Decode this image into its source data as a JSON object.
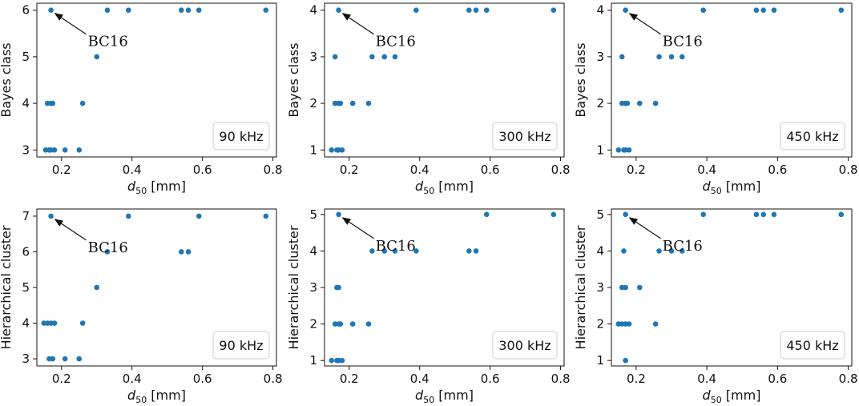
{
  "chart_data": [
    {
      "type": "scatter",
      "xlabel_main": "d",
      "xlabel_sub": "50",
      "xlabel_unit": " [mm]",
      "ylabel": "Bayes class",
      "legend": "90 kHz",
      "annotation": "BC16",
      "annotation_point": [
        0.17,
        6
      ],
      "xlim": [
        0.13,
        0.81
      ],
      "ylim": [
        2.85,
        6.15
      ],
      "xticks": [
        "0.2",
        "0.4",
        "0.6",
        "0.8"
      ],
      "xtick_values": [
        0.2,
        0.4,
        0.6,
        0.8
      ],
      "yticks": [
        "3",
        "4",
        "5",
        "6"
      ],
      "ytick_values": [
        3,
        4,
        5,
        6
      ],
      "x": [
        0.17,
        0.16,
        0.17,
        0.175,
        0.18,
        0.21,
        0.25,
        0.26,
        0.3,
        0.33,
        0.39,
        0.54,
        0.56,
        0.59,
        0.78,
        0.155,
        0.165,
        0.17
      ],
      "y": [
        6,
        4,
        4,
        4,
        3,
        3,
        3,
        4,
        5,
        6,
        6,
        6,
        6,
        6,
        6,
        3,
        3,
        3
      ],
      "color": "#1f77b4"
    },
    {
      "type": "scatter",
      "xlabel_main": "d",
      "xlabel_sub": "50",
      "xlabel_unit": " [mm]",
      "ylabel": "Bayes class",
      "legend": "300 kHz",
      "annotation": "BC16",
      "annotation_point": [
        0.17,
        4
      ],
      "xlim": [
        0.13,
        0.81
      ],
      "ylim": [
        0.85,
        4.15
      ],
      "xticks": [
        "0.2",
        "0.4",
        "0.6",
        "0.8"
      ],
      "xtick_values": [
        0.2,
        0.4,
        0.6,
        0.8
      ],
      "yticks": [
        "1",
        "2",
        "3",
        "4"
      ],
      "ytick_values": [
        1,
        2,
        3,
        4
      ],
      "x": [
        0.17,
        0.16,
        0.16,
        0.17,
        0.175,
        0.21,
        0.255,
        0.265,
        0.3,
        0.33,
        0.39,
        0.54,
        0.56,
        0.59,
        0.78,
        0.15,
        0.165,
        0.17,
        0.18
      ],
      "y": [
        4,
        3,
        2,
        2,
        2,
        2,
        2,
        3,
        3,
        3,
        4,
        4,
        4,
        4,
        4,
        1,
        1,
        1,
        1
      ],
      "color": "#1f77b4"
    },
    {
      "type": "scatter",
      "xlabel_main": "d",
      "xlabel_sub": "50",
      "xlabel_unit": " [mm]",
      "ylabel": "Bayes class",
      "legend": "450 kHz",
      "annotation": "BC16",
      "annotation_point": [
        0.17,
        4
      ],
      "xlim": [
        0.13,
        0.81
      ],
      "ylim": [
        0.85,
        4.15
      ],
      "xticks": [
        "0.2",
        "0.4",
        "0.6",
        "0.8"
      ],
      "xtick_values": [
        0.2,
        0.4,
        0.6,
        0.8
      ],
      "yticks": [
        "1",
        "2",
        "3",
        "4"
      ],
      "ytick_values": [
        1,
        2,
        3,
        4
      ],
      "x": [
        0.17,
        0.16,
        0.16,
        0.17,
        0.175,
        0.21,
        0.255,
        0.265,
        0.3,
        0.33,
        0.39,
        0.54,
        0.56,
        0.59,
        0.78,
        0.15,
        0.165,
        0.17,
        0.18
      ],
      "y": [
        4,
        3,
        2,
        2,
        2,
        2,
        2,
        3,
        3,
        3,
        4,
        4,
        4,
        4,
        4,
        1,
        1,
        1,
        1
      ],
      "color": "#1f77b4"
    },
    {
      "type": "scatter",
      "xlabel_main": "d",
      "xlabel_sub": "50",
      "xlabel_unit": " [mm]",
      "ylabel": "Hierarchical cluster",
      "legend": "90 kHz",
      "annotation": "BC16",
      "annotation_point": [
        0.17,
        7
      ],
      "xlim": [
        0.13,
        0.81
      ],
      "ylim": [
        2.8,
        7.2
      ],
      "xticks": [
        "0.2",
        "0.4",
        "0.6",
        "0.8"
      ],
      "xtick_values": [
        0.2,
        0.4,
        0.6,
        0.8
      ],
      "yticks": [
        "3",
        "4",
        "5",
        "6",
        "7"
      ],
      "ytick_values": [
        3,
        4,
        5,
        6,
        7
      ],
      "x": [
        0.17,
        0.15,
        0.16,
        0.17,
        0.18,
        0.165,
        0.175,
        0.21,
        0.25,
        0.26,
        0.3,
        0.33,
        0.39,
        0.54,
        0.56,
        0.59,
        0.78
      ],
      "y": [
        7,
        4,
        4,
        4,
        4,
        3,
        3,
        3,
        3,
        4,
        5,
        6,
        7,
        6,
        6,
        7,
        7
      ],
      "color": "#1f77b4"
    },
    {
      "type": "scatter",
      "xlabel_main": "d",
      "xlabel_sub": "50",
      "xlabel_unit": " [mm]",
      "ylabel": "Hierarchical cluster",
      "legend": "300 kHz",
      "annotation": "BC16",
      "annotation_point": [
        0.17,
        5
      ],
      "xlim": [
        0.13,
        0.81
      ],
      "ylim": [
        0.85,
        5.15
      ],
      "xticks": [
        "0.2",
        "0.4",
        "0.6",
        "0.8"
      ],
      "xtick_values": [
        0.2,
        0.4,
        0.6,
        0.8
      ],
      "yticks": [
        "1",
        "2",
        "3",
        "4",
        "5"
      ],
      "ytick_values": [
        1,
        2,
        3,
        4,
        5
      ],
      "x": [
        0.17,
        0.165,
        0.17,
        0.16,
        0.17,
        0.175,
        0.21,
        0.255,
        0.265,
        0.3,
        0.33,
        0.39,
        0.54,
        0.56,
        0.59,
        0.78,
        0.15,
        0.165,
        0.17,
        0.18
      ],
      "y": [
        5,
        3,
        3,
        2,
        2,
        2,
        2,
        2,
        4,
        4,
        4,
        4,
        4,
        4,
        5,
        5,
        1,
        1,
        1,
        1
      ],
      "color": "#1f77b4"
    },
    {
      "type": "scatter",
      "xlabel_main": "d",
      "xlabel_sub": "50",
      "xlabel_unit": " [mm]",
      "ylabel": "Hierarchical cluster",
      "legend": "450 kHz",
      "annotation": "BC16",
      "annotation_point": [
        0.17,
        5
      ],
      "xlim": [
        0.13,
        0.81
      ],
      "ylim": [
        0.85,
        5.15
      ],
      "xticks": [
        "0.2",
        "0.4",
        "0.6",
        "0.8"
      ],
      "xtick_values": [
        0.2,
        0.4,
        0.6,
        0.8
      ],
      "yticks": [
        "1",
        "2",
        "3",
        "4",
        "5"
      ],
      "ytick_values": [
        1,
        2,
        3,
        4,
        5
      ],
      "x": [
        0.17,
        0.165,
        0.16,
        0.17,
        0.15,
        0.16,
        0.17,
        0.18,
        0.21,
        0.255,
        0.265,
        0.3,
        0.33,
        0.39,
        0.54,
        0.56,
        0.59,
        0.78,
        0.17
      ],
      "y": [
        5,
        4,
        3,
        3,
        2,
        2,
        2,
        2,
        3,
        2,
        4,
        4,
        4,
        5,
        5,
        5,
        5,
        5,
        1
      ],
      "color": "#1f77b4"
    }
  ]
}
